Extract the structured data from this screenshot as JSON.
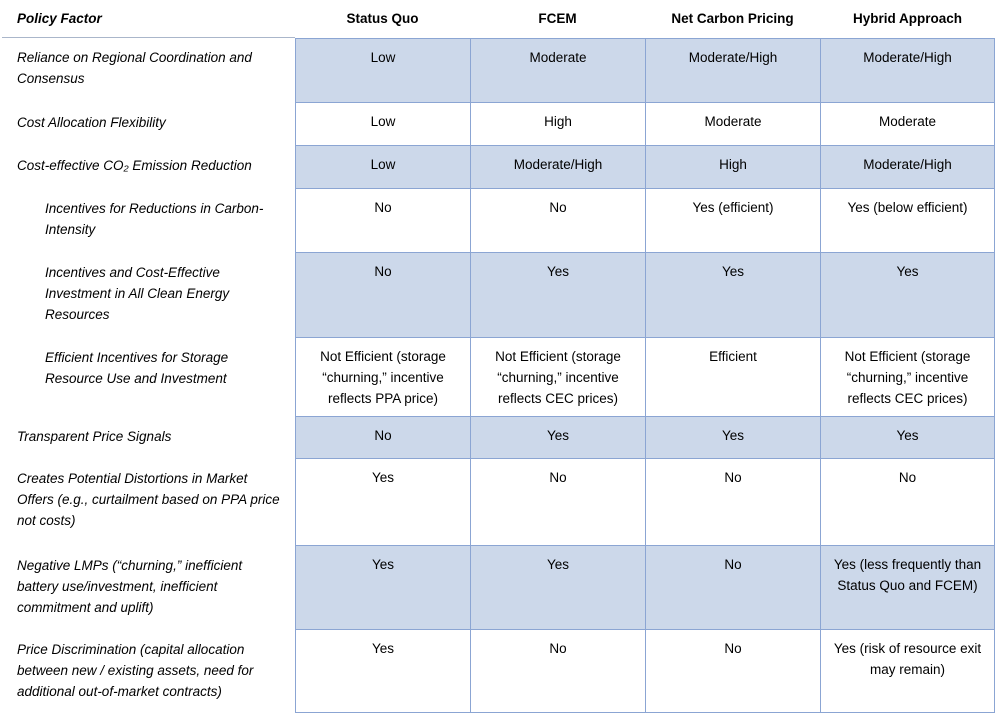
{
  "chart_data": {
    "type": "table",
    "title": "",
    "columns": [
      "Policy Factor",
      "Status Quo",
      "FCEM",
      "Net Carbon Pricing",
      "Hybrid Approach"
    ],
    "rows": [
      {
        "factor": "Reliance on Regional Coordination and Consensus",
        "indent": false,
        "shaded": true,
        "values": [
          "Low",
          "Moderate",
          "Moderate/High",
          "Moderate/High"
        ]
      },
      {
        "factor": "Cost Allocation Flexibility",
        "indent": false,
        "shaded": false,
        "values": [
          "Low",
          "High",
          "Moderate",
          "Moderate"
        ]
      },
      {
        "factor": "Cost-effective CO₂ Emission Reduction",
        "indent": false,
        "shaded": true,
        "values": [
          "Low",
          "Moderate/High",
          "High",
          "Moderate/High"
        ]
      },
      {
        "factor": "Incentives for Reductions in Carbon-Intensity",
        "indent": true,
        "shaded": false,
        "values": [
          "No",
          "No",
          "Yes (efficient)",
          "Yes (below efficient)"
        ]
      },
      {
        "factor": "Incentives and Cost-Effective Investment in All Clean Energy Resources",
        "indent": true,
        "shaded": true,
        "values": [
          "No",
          "Yes",
          "Yes",
          "Yes"
        ]
      },
      {
        "factor": "Efficient Incentives for Storage Resource Use and Investment",
        "indent": true,
        "shaded": false,
        "values": [
          "Not Efficient (storage “churning,” incentive reflects PPA price)",
          "Not Efficient (storage “churning,” incentive reflects CEC prices)",
          "Efficient",
          "Not Efficient (storage “churning,” incentive reflects CEC prices)"
        ]
      },
      {
        "factor": "Transparent Price Signals",
        "indent": false,
        "shaded": true,
        "values": [
          "No",
          "Yes",
          "Yes",
          "Yes"
        ]
      },
      {
        "factor": "Creates Potential Distortions in Market Offers (e.g., curtailment based on PPA price not costs)",
        "indent": false,
        "shaded": false,
        "values": [
          "Yes",
          "No",
          "No",
          "No"
        ]
      },
      {
        "factor": "Negative LMPs (“churning,” inefficient battery use/investment, inefficient commitment and uplift)",
        "indent": false,
        "shaded": true,
        "values": [
          "Yes",
          "Yes",
          "No",
          "Yes (less frequently than Status Quo and FCEM)"
        ]
      },
      {
        "factor": "Price Discrimination (capital allocation between new / existing assets, need for additional out-of-market contracts)",
        "indent": false,
        "shaded": false,
        "values": [
          "Yes",
          "No",
          "No",
          "Yes (risk of resource exit may remain)"
        ]
      }
    ]
  },
  "colors": {
    "shaded_cell_fill": "#ccd8ea",
    "grid_border": "#8ba5d3"
  }
}
